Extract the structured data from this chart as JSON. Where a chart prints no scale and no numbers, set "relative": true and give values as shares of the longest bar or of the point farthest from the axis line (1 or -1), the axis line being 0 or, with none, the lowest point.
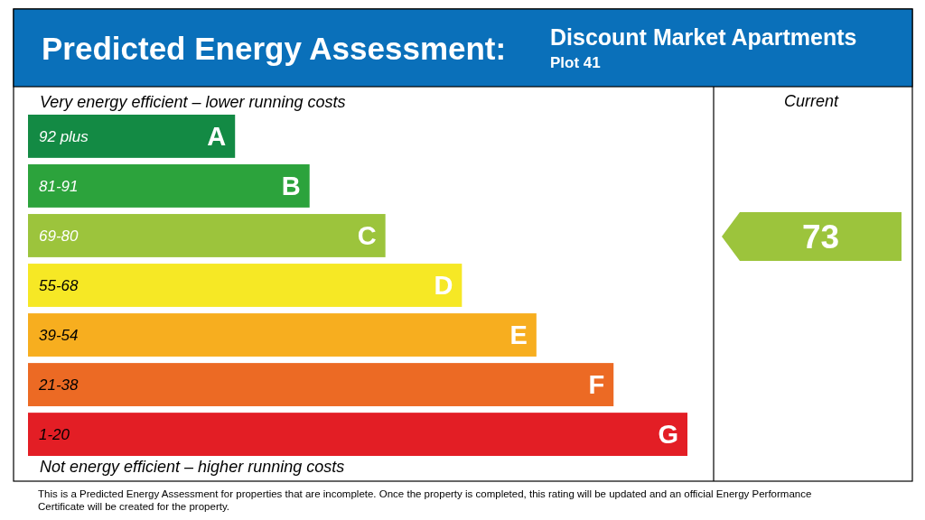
{
  "chart_data": {
    "type": "bar",
    "orientation": "horizontal",
    "relative": true,
    "title": "Predicted Energy Assessment:",
    "subtitle": "Discount Market Apartments",
    "categories": [
      "92 plus",
      "81-91",
      "69-80",
      "55-68",
      "39-54",
      "21-38",
      "1-20"
    ],
    "values": [
      0.314,
      0.427,
      0.542,
      0.658,
      0.771,
      0.888,
      1
    ],
    "colors": [
      "#138a44",
      "#2ca33c",
      "#9cc43c",
      "#f6e825",
      "#f7ae1f",
      "#ec6a24",
      "#e31e25"
    ],
    "annotations": [
      "Very energy efficient – lower running costs",
      "Not energy efficient – higher running costs",
      "Current",
      "Plot 41",
      "This is a Predicted Energy Assessment for properties that are incomplete. Once the property is completed, this rating will be updated and an official Energy Performance Certificate will be created for the property.",
      "73",
      {
        "text": "A",
        "y": "92 plus"
      },
      {
        "text": "B",
        "y": "81-91"
      },
      {
        "text": "C",
        "y": "69-80"
      },
      {
        "text": "D",
        "y": "55-68"
      },
      {
        "text": "E",
        "y": "39-54"
      },
      {
        "text": "F",
        "y": "21-38"
      },
      {
        "text": "G",
        "y": "1-20"
      }
    ]
  }
}
